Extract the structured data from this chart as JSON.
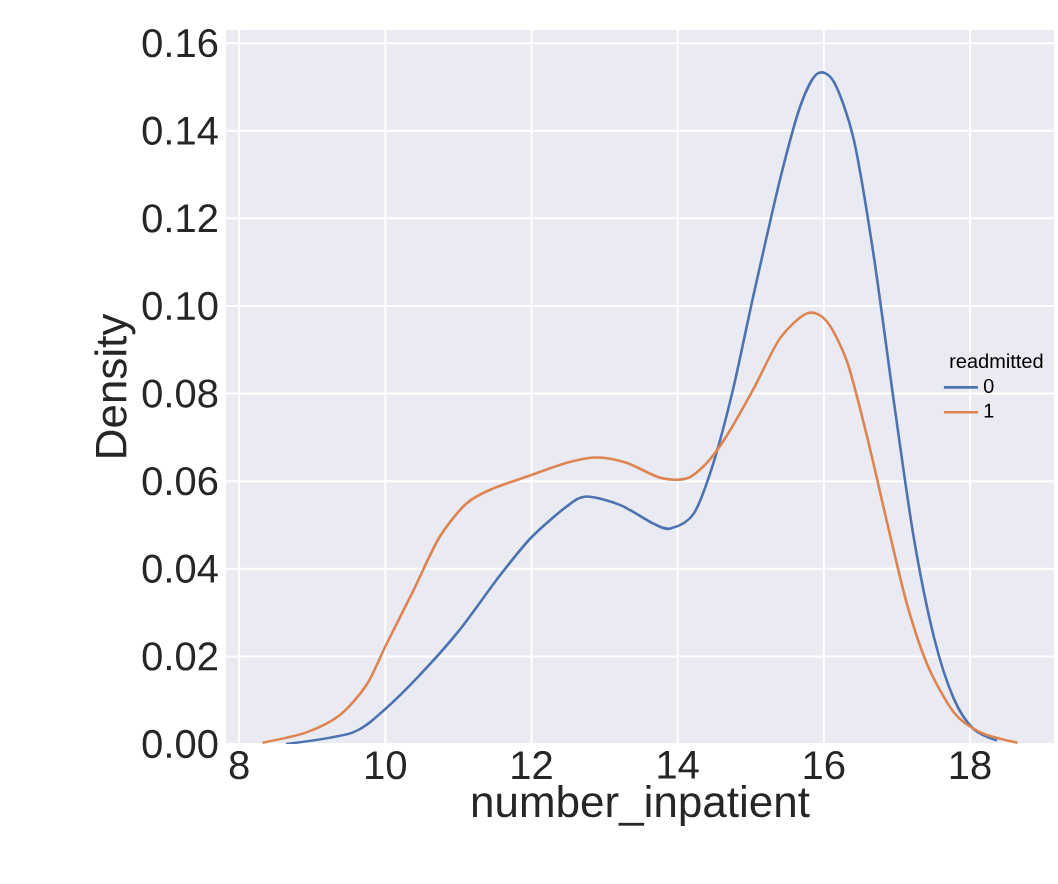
{
  "chart_data": {
    "type": "line",
    "xlabel": "number_inpatient",
    "ylabel": "Density",
    "legend_title": "readmitted",
    "legend": "right",
    "grid": true,
    "marker": "none",
    "line_style": "solid",
    "xlim": [
      7.82,
      19.15
    ],
    "ylim": [
      0,
      0.163
    ],
    "xticks": [
      8,
      10,
      12,
      14,
      16,
      18
    ],
    "yticks": [
      {
        "value": 0,
        "label": "0.00"
      },
      {
        "value": 0.02,
        "label": "0.02"
      },
      {
        "value": 0.04,
        "label": "0.04"
      },
      {
        "value": 0.06,
        "label": "0.06"
      },
      {
        "value": 0.08,
        "label": "0.08"
      },
      {
        "value": 0.1,
        "label": "0.10"
      },
      {
        "value": 0.12,
        "label": "0.12"
      },
      {
        "value": 0.14,
        "label": "0.14"
      },
      {
        "value": 0.16,
        "label": "0.16"
      }
    ],
    "series": [
      {
        "name": "0",
        "color": "#4c72b0",
        "x": [
          8.64,
          9.55,
          10.0,
          10.47,
          11.0,
          11.56,
          12.0,
          12.48,
          12.75,
          13.21,
          13.67,
          13.9,
          14.22,
          14.49,
          14.76,
          15.04,
          15.4,
          15.68,
          15.91,
          16.14,
          16.41,
          16.68,
          16.96,
          17.23,
          17.51,
          17.78,
          18.05,
          18.37
        ],
        "values": [
          0.0,
          0.0026,
          0.008,
          0.0157,
          0.0257,
          0.0383,
          0.0472,
          0.0542,
          0.0565,
          0.0546,
          0.0503,
          0.0492,
          0.0526,
          0.0642,
          0.0811,
          0.1026,
          0.1288,
          0.1457,
          0.153,
          0.1511,
          0.138,
          0.1118,
          0.078,
          0.0472,
          0.0242,
          0.0103,
          0.0034,
          0.0008
        ]
      },
      {
        "name": "1",
        "color": "#dd8452",
        "x": [
          8.32,
          8.91,
          9.37,
          9.74,
          10.01,
          10.38,
          10.74,
          11.11,
          11.47,
          12.0,
          12.48,
          12.89,
          13.3,
          13.76,
          14.12,
          14.4,
          14.67,
          15.04,
          15.4,
          15.77,
          16.04,
          16.32,
          16.59,
          16.87,
          17.14,
          17.42,
          17.78,
          18.15,
          18.65
        ],
        "values": [
          0.0003,
          0.0026,
          0.0065,
          0.0134,
          0.0226,
          0.0349,
          0.0472,
          0.0549,
          0.0583,
          0.0614,
          0.0642,
          0.0654,
          0.0642,
          0.0608,
          0.0606,
          0.0642,
          0.0703,
          0.0811,
          0.0926,
          0.0983,
          0.0965,
          0.0872,
          0.0703,
          0.0503,
          0.0318,
          0.018,
          0.0072,
          0.0026,
          0.0003
        ]
      }
    ]
  }
}
